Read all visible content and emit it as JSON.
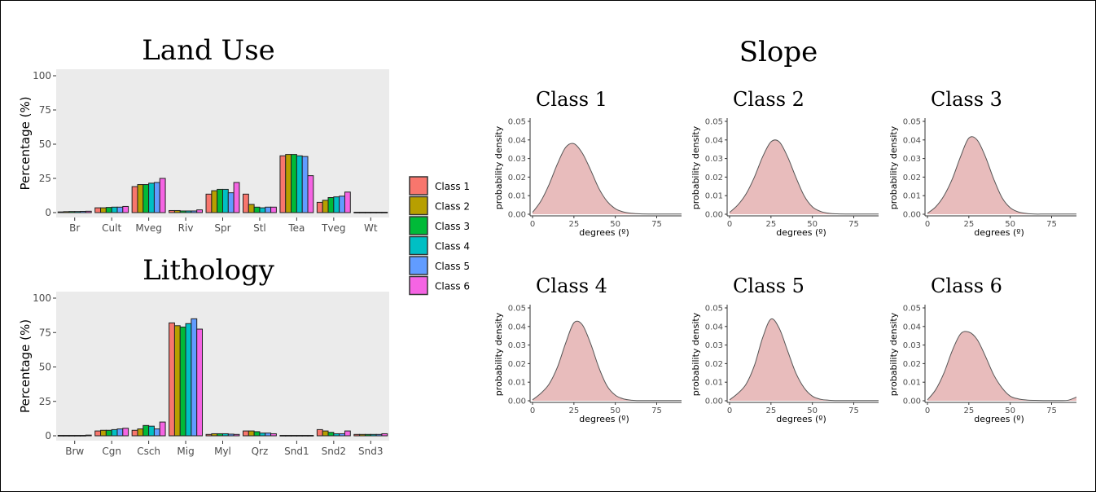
{
  "colors": {
    "class_fills": [
      "#F8766D",
      "#B79F00",
      "#00BA38",
      "#00BFC4",
      "#619CFF",
      "#F564E3"
    ],
    "panel_bg": "#EBEBEB",
    "density_fill": "#E8BCBC",
    "density_line": "#555555"
  },
  "legend": {
    "entries": [
      "Class 1",
      "Class 2",
      "Class 3",
      "Class 4",
      "Class 5",
      "Class 6"
    ]
  },
  "chart_data": [
    {
      "type": "bar",
      "title": "Land Use",
      "xlabel": "",
      "ylabel": "Percentage (%)",
      "ylim": [
        0,
        100
      ],
      "yticks": [
        "0",
        "25",
        "50",
        "75",
        "100"
      ],
      "grid": false,
      "categories": [
        "Br",
        "Cult",
        "Mveg",
        "Riv",
        "Spr",
        "Stl",
        "Tea",
        "Tveg",
        "Wt"
      ],
      "series": [
        {
          "name": "Class 1",
          "values": [
            0.5,
            3.5,
            19,
            1.5,
            13.5,
            13.5,
            41.5,
            7.5,
            0.3
          ]
        },
        {
          "name": "Class 2",
          "values": [
            0.7,
            3.5,
            20.5,
            1.5,
            16,
            6,
            42.5,
            9,
            0.3
          ]
        },
        {
          "name": "Class 3",
          "values": [
            0.8,
            3.8,
            20.5,
            1.2,
            17,
            4,
            42.5,
            11,
            0.3
          ]
        },
        {
          "name": "Class 4",
          "values": [
            0.8,
            4,
            21.5,
            1.2,
            17,
            3.5,
            41.5,
            11.5,
            0.3
          ]
        },
        {
          "name": "Class 5",
          "values": [
            0.9,
            4,
            22,
            1.2,
            14.5,
            4,
            41,
            12,
            0.3
          ]
        },
        {
          "name": "Class 6",
          "values": [
            1,
            4.5,
            25,
            2,
            22,
            4,
            27,
            15,
            0.3
          ]
        }
      ]
    },
    {
      "type": "bar",
      "title": "Lithology",
      "xlabel": "",
      "ylabel": "Percentage (%)",
      "ylim": [
        0,
        100
      ],
      "yticks": [
        "0",
        "25",
        "50",
        "75",
        "100"
      ],
      "grid": false,
      "categories": [
        "Brw",
        "Cgn",
        "Csch",
        "Mig",
        "Myl",
        "Qrz",
        "Snd1",
        "Snd2",
        "Snd3"
      ],
      "series": [
        {
          "name": "Class 1",
          "values": [
            0.3,
            3.5,
            4,
            82,
            1,
            3.5,
            0.3,
            4.5,
            1
          ]
        },
        {
          "name": "Class 2",
          "values": [
            0.3,
            4,
            5,
            80,
            1.5,
            3.5,
            0.3,
            3.5,
            1
          ]
        },
        {
          "name": "Class 3",
          "values": [
            0.3,
            4,
            7.5,
            79,
            1.5,
            3,
            0.3,
            2.5,
            1
          ]
        },
        {
          "name": "Class 4",
          "values": [
            0.3,
            4.5,
            7,
            81.5,
            1.5,
            2,
            0.3,
            1.5,
            1
          ]
        },
        {
          "name": "Class 5",
          "values": [
            0.3,
            5,
            5,
            85,
            1.2,
            2,
            0.3,
            1.5,
            1
          ]
        },
        {
          "name": "Class 6",
          "values": [
            0.5,
            5.5,
            10,
            77.5,
            1,
            1.5,
            0.3,
            3.5,
            1.5
          ]
        }
      ]
    },
    {
      "type": "area",
      "title": "Class 1",
      "suptitle": "Slope",
      "xlabel": "degrees (º)",
      "ylabel": "probability density",
      "xlim": [
        0,
        90
      ],
      "ylim": [
        0,
        0.05
      ],
      "xticks": [
        "0",
        "25",
        "50",
        "75"
      ],
      "yticks": [
        "0.00",
        "0.01",
        "0.02",
        "0.03",
        "0.04",
        "0.05"
      ],
      "x": [
        0,
        5,
        10,
        15,
        20,
        25,
        30,
        35,
        40,
        45,
        50,
        55,
        60,
        65,
        70,
        75,
        80,
        85,
        90
      ],
      "y": [
        0.001,
        0.007,
        0.016,
        0.027,
        0.036,
        0.038,
        0.033,
        0.024,
        0.014,
        0.007,
        0.003,
        0.0012,
        0.0005,
        0.0002,
        0.0001,
        0.0001,
        0.0001,
        0.0001,
        0.0001
      ]
    },
    {
      "type": "area",
      "title": "Class 2",
      "xlabel": "degrees (º)",
      "ylabel": "probability density",
      "xlim": [
        0,
        90
      ],
      "ylim": [
        0,
        0.05
      ],
      "xticks": [
        "0",
        "25",
        "50",
        "75"
      ],
      "yticks": [
        "0.00",
        "0.01",
        "0.02",
        "0.03",
        "0.04",
        "0.05"
      ],
      "x": [
        0,
        5,
        10,
        15,
        20,
        25,
        30,
        35,
        40,
        45,
        50,
        55,
        60,
        65,
        70,
        75,
        80,
        85,
        90
      ],
      "y": [
        0.001,
        0.005,
        0.011,
        0.02,
        0.031,
        0.039,
        0.039,
        0.031,
        0.02,
        0.01,
        0.004,
        0.0015,
        0.0005,
        0.0002,
        0.0001,
        0.0001,
        0.0001,
        0.0001,
        0.0001
      ]
    },
    {
      "type": "area",
      "title": "Class 3",
      "xlabel": "degrees (º)",
      "ylabel": "probability density",
      "xlim": [
        0,
        90
      ],
      "ylim": [
        0,
        0.05
      ],
      "xticks": [
        "0",
        "25",
        "50",
        "75"
      ],
      "yticks": [
        "0.00",
        "0.01",
        "0.02",
        "0.03",
        "0.04",
        "0.05"
      ],
      "x": [
        0,
        5,
        10,
        15,
        20,
        25,
        30,
        35,
        40,
        45,
        50,
        55,
        60,
        65,
        70,
        75,
        80,
        85,
        90
      ],
      "y": [
        0.0005,
        0.004,
        0.01,
        0.019,
        0.031,
        0.041,
        0.04,
        0.031,
        0.019,
        0.009,
        0.0035,
        0.0012,
        0.0004,
        0.0001,
        0.0001,
        0.0001,
        0.0001,
        0.0001,
        0.0001
      ]
    },
    {
      "type": "area",
      "title": "Class 4",
      "xlabel": "degrees (º)",
      "ylabel": "probability density",
      "xlim": [
        0,
        90
      ],
      "ylim": [
        0,
        0.05
      ],
      "xticks": [
        "0",
        "25",
        "50",
        "75"
      ],
      "yticks": [
        "0.00",
        "0.01",
        "0.02",
        "0.03",
        "0.04",
        "0.05"
      ],
      "x": [
        0,
        5,
        10,
        15,
        20,
        25,
        30,
        35,
        40,
        45,
        50,
        55,
        60,
        65,
        70,
        75,
        80,
        85,
        90
      ],
      "y": [
        0.0005,
        0.004,
        0.009,
        0.018,
        0.031,
        0.042,
        0.041,
        0.031,
        0.018,
        0.008,
        0.003,
        0.001,
        0.0003,
        0.0001,
        0.0001,
        0.0001,
        0.0001,
        0.0001,
        0.0001
      ]
    },
    {
      "type": "area",
      "title": "Class 5",
      "xlabel": "degrees (º)",
      "ylabel": "probability density",
      "xlim": [
        0,
        90
      ],
      "ylim": [
        0,
        0.05
      ],
      "xticks": [
        "0",
        "25",
        "50",
        "75"
      ],
      "yticks": [
        "0.00",
        "0.01",
        "0.02",
        "0.03",
        "0.04",
        "0.05"
      ],
      "x": [
        0,
        5,
        10,
        15,
        20,
        25,
        30,
        35,
        40,
        45,
        50,
        55,
        60,
        65,
        70,
        75,
        80,
        85,
        90
      ],
      "y": [
        0.0005,
        0.004,
        0.009,
        0.019,
        0.034,
        0.044,
        0.039,
        0.027,
        0.015,
        0.007,
        0.0025,
        0.0008,
        0.0003,
        0.0001,
        0.0001,
        0.0001,
        0.0001,
        0.0001,
        0.0001
      ]
    },
    {
      "type": "area",
      "title": "Class 6",
      "xlabel": "degrees (º)",
      "ylabel": "probability density",
      "xlim": [
        0,
        90
      ],
      "ylim": [
        0,
        0.05
      ],
      "xticks": [
        "0",
        "25",
        "50",
        "75"
      ],
      "yticks": [
        "0.00",
        "0.01",
        "0.02",
        "0.03",
        "0.04",
        "0.05"
      ],
      "x": [
        0,
        5,
        10,
        15,
        20,
        25,
        30,
        35,
        40,
        45,
        50,
        55,
        60,
        65,
        70,
        75,
        80,
        85,
        90
      ],
      "y": [
        0.0005,
        0.006,
        0.015,
        0.027,
        0.036,
        0.037,
        0.033,
        0.024,
        0.014,
        0.007,
        0.0025,
        0.001,
        0.0004,
        0.0002,
        0.0001,
        0.0001,
        0.0001,
        0.0003,
        0.002
      ]
    }
  ]
}
